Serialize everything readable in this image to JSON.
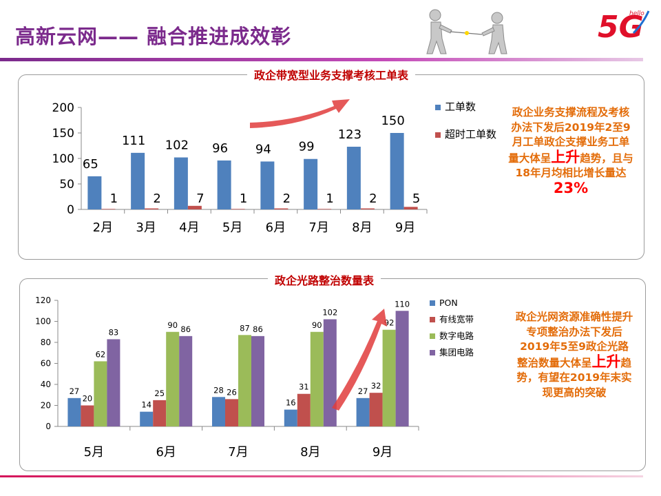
{
  "header": {
    "title": "高新云网——  融合推进成效彰",
    "logo_text": "5G",
    "logo_sub": "hello"
  },
  "panel1": {
    "title": "政企带宽型业务支撑考核工单表",
    "note_a": "政企业务支撑流程及考核办法下发后2019年2至9月工单政企支撑业务工单量大体呈",
    "note_emph": "上升",
    "note_b": "趋势，且与18年月均相比增长量达",
    "note_pct": "23%"
  },
  "panel2": {
    "title": "政企光路整治数量表",
    "note_a": "政企光网资源准确性提升专项整治办法下发后2019年5至9政企光路整治数量大体呈",
    "note_emph": "上升",
    "note_b": "趋势，有望在2019年末实现更高的突破"
  },
  "colors": {
    "blue": "#4f81bd",
    "red": "#c0504d",
    "green": "#9bbb59",
    "purple": "#8064a2",
    "title_purple": "#7b2a8c",
    "note_orange": "#e36c09",
    "arrow_red": "#e03c3c"
  },
  "chart_data": [
    {
      "type": "bar",
      "categories": [
        "2月",
        "3月",
        "4月",
        "5月",
        "6月",
        "7月",
        "8月",
        "9月"
      ],
      "series": [
        {
          "name": "工单数",
          "values": [
            65,
            111,
            102,
            96,
            94,
            99,
            123,
            150
          ],
          "color": "#4f81bd"
        },
        {
          "name": "超时工单数",
          "values": [
            1,
            2,
            7,
            1,
            2,
            1,
            2,
            5
          ],
          "color": "#c0504d"
        }
      ],
      "yticks": [
        "0",
        "50",
        "100",
        "150",
        "200"
      ],
      "ylim": [
        0,
        200
      ],
      "legend": "right"
    },
    {
      "type": "bar",
      "categories": [
        "5月",
        "6月",
        "7月",
        "8月",
        "9月"
      ],
      "series": [
        {
          "name": "PON",
          "values": [
            27,
            14,
            28,
            16,
            27
          ],
          "color": "#4f81bd"
        },
        {
          "name": "有线宽带",
          "values": [
            20,
            25,
            26,
            31,
            32
          ],
          "color": "#c0504d"
        },
        {
          "name": "数字电路",
          "values": [
            62,
            90,
            87,
            90,
            92
          ],
          "color": "#9bbb59"
        },
        {
          "name": "集团电路",
          "values": [
            83,
            86,
            86,
            102,
            110
          ],
          "color": "#8064a2"
        }
      ],
      "yticks": [
        "0",
        "20",
        "40",
        "60",
        "80",
        "100",
        "120"
      ],
      "ylim": [
        0,
        120
      ],
      "legend": "right"
    }
  ]
}
